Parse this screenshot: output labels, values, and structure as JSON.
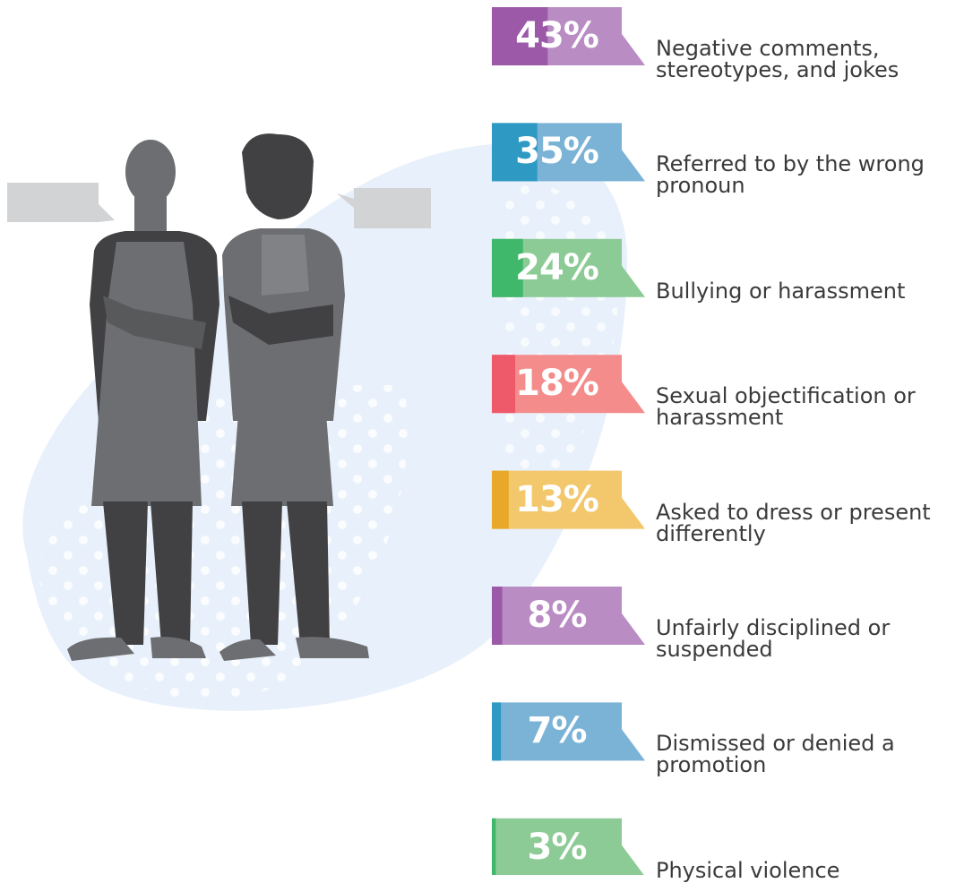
{
  "chart_data": {
    "type": "bar",
    "categories": [
      "Negative comments, stereotypes, and jokes",
      "Referred to by the wrong pronoun",
      "Bullying or harassment",
      "Sexual objectification or harassment",
      "Asked to dress or present differently",
      "Unfairly disciplined or suspended",
      "Dismissed or denied a promotion",
      "Physical violence"
    ],
    "values": [
      43,
      35,
      24,
      18,
      13,
      8,
      7,
      3
    ],
    "value_labels": [
      "43%",
      "35%",
      "24%",
      "18%",
      "13%",
      "8%",
      "7%",
      "3%"
    ],
    "colors": [
      "#9b59a8",
      "#2e9ac4",
      "#3fb86b",
      "#ef5a6a",
      "#e8a92b",
      "#9b59a8",
      "#2e9ac4",
      "#3fb86b"
    ],
    "light_colors": [
      "#b98cc4",
      "#7ab3d6",
      "#8dcb96",
      "#f48c8c",
      "#f3c76c",
      "#b98cc4",
      "#7ab3d6",
      "#8dcb96"
    ],
    "xlim": [
      0,
      100
    ]
  }
}
